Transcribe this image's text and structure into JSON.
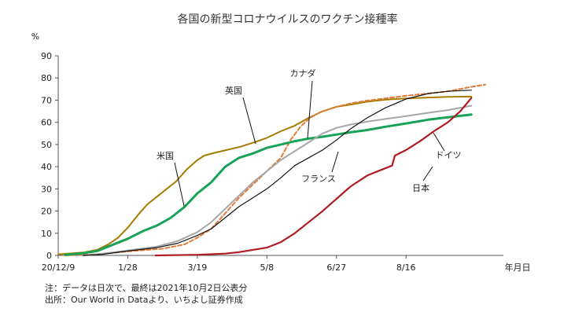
{
  "chart_data": {
    "type": "line",
    "title": "各国の新型コロナウイルスのワクチン接種率",
    "ylabel": "%",
    "xlabel": "年月日",
    "ylim": [
      0,
      90
    ],
    "yticks": [
      0,
      10,
      20,
      30,
      40,
      50,
      60,
      70,
      80,
      90
    ],
    "x_tick_labels": [
      "20/12/9",
      "1/28",
      "3/19",
      "5/8",
      "6/27",
      "8/16"
    ],
    "x_tick_dates": [
      "2020-12-09",
      "2021-01-28",
      "2021-03-19",
      "2021-05-08",
      "2021-06-27",
      "2021-08-16"
    ],
    "xlim": [
      "2020-12-09",
      "2021-10-25"
    ],
    "grid": false,
    "series": [
      {
        "name": "英国",
        "color": "#a67c00",
        "style": "solid",
        "width": 2,
        "points": [
          [
            "2020-12-09",
            0.5
          ],
          [
            "2020-12-27",
            1.3
          ],
          [
            "2021-01-06",
            2.5
          ],
          [
            "2021-01-14",
            5
          ],
          [
            "2021-01-21",
            8
          ],
          [
            "2021-01-28",
            12.5
          ],
          [
            "2021-02-04",
            18
          ],
          [
            "2021-02-11",
            23
          ],
          [
            "2021-02-18",
            26.5
          ],
          [
            "2021-02-25",
            30
          ],
          [
            "2021-03-04",
            33.5
          ],
          [
            "2021-03-11",
            38.5
          ],
          [
            "2021-03-19",
            43
          ],
          [
            "2021-03-24",
            45
          ],
          [
            "2021-03-31",
            46.2
          ],
          [
            "2021-04-09",
            47.5
          ],
          [
            "2021-04-19",
            49
          ],
          [
            "2021-04-29",
            51
          ],
          [
            "2021-05-08",
            53
          ],
          [
            "2021-05-18",
            56
          ],
          [
            "2021-05-28",
            58.5
          ],
          [
            "2021-06-07",
            62
          ],
          [
            "2021-06-17",
            65
          ],
          [
            "2021-06-27",
            67
          ],
          [
            "2021-07-07",
            68
          ],
          [
            "2021-07-19",
            69.3
          ],
          [
            "2021-08-01",
            70.2
          ],
          [
            "2021-08-16",
            70.8
          ],
          [
            "2021-09-01",
            71.2
          ],
          [
            "2021-09-15",
            71.5
          ],
          [
            "2021-10-02",
            71.6
          ]
        ]
      },
      {
        "name": "カナダ",
        "color": "#e07b39",
        "style": "dashed",
        "width": 2,
        "points": [
          [
            "2020-12-14",
            0
          ],
          [
            "2021-01-05",
            0.5
          ],
          [
            "2021-01-28",
            1.8
          ],
          [
            "2021-02-22",
            3
          ],
          [
            "2021-03-10",
            5
          ],
          [
            "2021-03-19",
            8
          ],
          [
            "2021-03-29",
            12
          ],
          [
            "2021-04-08",
            19
          ],
          [
            "2021-04-18",
            26
          ],
          [
            "2021-04-28",
            32
          ],
          [
            "2021-05-08",
            38
          ],
          [
            "2021-05-18",
            44
          ],
          [
            "2021-05-25",
            52
          ],
          [
            "2021-06-01",
            58
          ],
          [
            "2021-06-08",
            62
          ],
          [
            "2021-06-15",
            64.5
          ],
          [
            "2021-06-27",
            67
          ],
          [
            "2021-07-07",
            68.5
          ],
          [
            "2021-07-19",
            69.8
          ],
          [
            "2021-08-01",
            70.8
          ],
          [
            "2021-08-16",
            72
          ],
          [
            "2021-09-01",
            73
          ],
          [
            "2021-09-15",
            74
          ],
          [
            "2021-10-02",
            76
          ],
          [
            "2021-10-12",
            77
          ]
        ]
      },
      {
        "name": "米国",
        "color": "#17a357",
        "style": "solid",
        "width": 3,
        "points": [
          [
            "2020-12-14",
            0.3
          ],
          [
            "2020-12-27",
            1
          ],
          [
            "2021-01-06",
            2
          ],
          [
            "2021-01-14",
            4
          ],
          [
            "2021-01-28",
            7.5
          ],
          [
            "2021-02-08",
            11
          ],
          [
            "2021-02-18",
            13.5
          ],
          [
            "2021-02-28",
            17
          ],
          [
            "2021-03-10",
            22
          ],
          [
            "2021-03-19",
            28
          ],
          [
            "2021-03-29",
            33
          ],
          [
            "2021-04-08",
            40
          ],
          [
            "2021-04-18",
            44
          ],
          [
            "2021-04-28",
            46
          ],
          [
            "2021-05-08",
            48.5
          ],
          [
            "2021-05-18",
            50
          ],
          [
            "2021-05-28",
            51.5
          ],
          [
            "2021-06-07",
            52.7
          ],
          [
            "2021-06-17",
            53.5
          ],
          [
            "2021-06-27",
            54.5
          ],
          [
            "2021-07-07",
            55.5
          ],
          [
            "2021-07-19",
            56.5
          ],
          [
            "2021-08-01",
            58
          ],
          [
            "2021-08-16",
            59.5
          ],
          [
            "2021-09-01",
            61.2
          ],
          [
            "2021-09-15",
            62.3
          ],
          [
            "2021-10-02",
            63.5
          ]
        ]
      },
      {
        "name": "ドイツ",
        "color": "#a6a6a6",
        "style": "solid",
        "width": 2,
        "points": [
          [
            "2020-12-27",
            0
          ],
          [
            "2021-01-06",
            0.5
          ],
          [
            "2021-01-28",
            2.2
          ],
          [
            "2021-02-18",
            4
          ],
          [
            "2021-03-05",
            6.5
          ],
          [
            "2021-03-19",
            10.5
          ],
          [
            "2021-03-29",
            15
          ],
          [
            "2021-04-08",
            21
          ],
          [
            "2021-04-18",
            27
          ],
          [
            "2021-04-28",
            33
          ],
          [
            "2021-05-08",
            38
          ],
          [
            "2021-05-18",
            43
          ],
          [
            "2021-05-28",
            47
          ],
          [
            "2021-06-07",
            51
          ],
          [
            "2021-06-17",
            55
          ],
          [
            "2021-06-27",
            57.5
          ],
          [
            "2021-07-07",
            59
          ],
          [
            "2021-07-19",
            60.3
          ],
          [
            "2021-08-01",
            61.5
          ],
          [
            "2021-08-16",
            62.8
          ],
          [
            "2021-09-01",
            64.3
          ],
          [
            "2021-09-15",
            65.5
          ],
          [
            "2021-10-02",
            67.5
          ]
        ]
      },
      {
        "name": "フランス",
        "color": "#111111",
        "style": "solid",
        "width": 1.2,
        "points": [
          [
            "2020-12-27",
            0
          ],
          [
            "2021-01-10",
            0.5
          ],
          [
            "2021-01-28",
            2
          ],
          [
            "2021-02-18",
            3.5
          ],
          [
            "2021-03-05",
            5.5
          ],
          [
            "2021-03-19",
            9
          ],
          [
            "2021-03-29",
            12
          ],
          [
            "2021-04-08",
            17
          ],
          [
            "2021-04-18",
            22
          ],
          [
            "2021-04-28",
            26
          ],
          [
            "2021-05-08",
            30
          ],
          [
            "2021-05-18",
            35
          ],
          [
            "2021-05-28",
            40.5
          ],
          [
            "2021-06-07",
            44
          ],
          [
            "2021-06-17",
            47.5
          ],
          [
            "2021-06-27",
            52
          ],
          [
            "2021-07-07",
            57
          ],
          [
            "2021-07-19",
            62
          ],
          [
            "2021-08-01",
            66.5
          ],
          [
            "2021-08-16",
            70.5
          ],
          [
            "2021-09-01",
            73
          ],
          [
            "2021-09-15",
            74
          ],
          [
            "2021-10-02",
            74.5
          ]
        ]
      },
      {
        "name": "日本",
        "color": "#b01c22",
        "style": "solid",
        "width": 2.2,
        "points": [
          [
            "2021-02-17",
            0
          ],
          [
            "2021-03-19",
            0.3
          ],
          [
            "2021-04-08",
            0.8
          ],
          [
            "2021-04-18",
            1.5
          ],
          [
            "2021-04-28",
            2.5
          ],
          [
            "2021-05-08",
            3.5
          ],
          [
            "2021-05-18",
            6
          ],
          [
            "2021-05-28",
            10
          ],
          [
            "2021-06-07",
            15
          ],
          [
            "2021-06-17",
            20
          ],
          [
            "2021-06-27",
            25.5
          ],
          [
            "2021-07-07",
            31
          ],
          [
            "2021-07-19",
            36
          ],
          [
            "2021-07-29",
            38.5
          ],
          [
            "2021-08-06",
            40.5
          ],
          [
            "2021-08-08",
            45
          ],
          [
            "2021-08-16",
            47.5
          ],
          [
            "2021-08-26",
            51.5
          ],
          [
            "2021-09-05",
            56
          ],
          [
            "2021-09-15",
            60
          ],
          [
            "2021-09-24",
            65
          ],
          [
            "2021-10-02",
            71
          ]
        ]
      }
    ],
    "annotations": [
      "英国",
      "カナダ",
      "米国",
      "ドイツ",
      "フランス",
      "日本"
    ]
  },
  "notes": {
    "line1": "注：データは日次で、最終は2021年10月2日公表分",
    "line2": "出所：Our World in Dataより、いちよし証券作成"
  }
}
